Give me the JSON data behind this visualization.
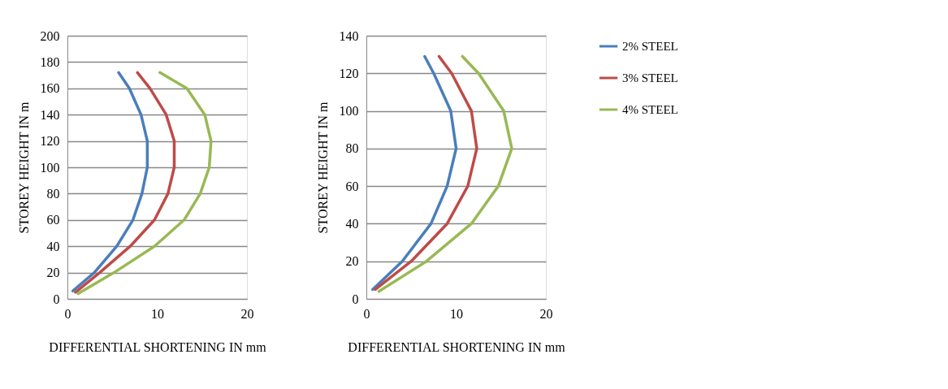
{
  "chart_data": [
    {
      "type": "line",
      "xlabel": "DIFFERENTIAL SHORTENING IN mm",
      "ylabel": "STOREY HEIGHT IN m",
      "xlim": [
        0,
        20
      ],
      "xticks": [
        0,
        10,
        20
      ],
      "ylim": [
        0,
        200
      ],
      "yticks": [
        0,
        20,
        40,
        60,
        80,
        100,
        120,
        140,
        160,
        180,
        200
      ],
      "grid": "y",
      "legend": "right",
      "marker": "none",
      "line_style": "solid",
      "series": [
        {
          "name": "2% STEEL",
          "color": "#4a7ebb",
          "x": [
            0.6,
            3.0,
            5.5,
            7.3,
            8.3,
            8.9,
            8.9,
            8.2,
            6.9,
            5.7
          ],
          "values": [
            6,
            20,
            40,
            60,
            80,
            100,
            120,
            140,
            160,
            172
          ]
        },
        {
          "name": "3% STEEL",
          "color": "#be4b48",
          "x": [
            0.9,
            3.6,
            7.0,
            9.7,
            11.2,
            11.9,
            11.9,
            11.0,
            9.2,
            7.8
          ],
          "values": [
            5,
            20,
            40,
            60,
            80,
            100,
            120,
            140,
            160,
            172
          ]
        },
        {
          "name": "4% STEEL",
          "color": "#98b954",
          "x": [
            1.2,
            5.2,
            9.7,
            13.0,
            14.8,
            15.8,
            16.0,
            15.3,
            13.3,
            10.3
          ],
          "values": [
            4,
            20,
            40,
            60,
            80,
            100,
            120,
            140,
            160,
            172
          ]
        }
      ]
    },
    {
      "type": "line",
      "xlabel": "DIFFERENTIAL SHORTENING IN mm",
      "ylabel": "STOREY HEIGHT IN m",
      "xlim": [
        0,
        20
      ],
      "xticks": [
        0,
        10,
        20
      ],
      "ylim": [
        0,
        140
      ],
      "yticks": [
        0,
        20,
        40,
        60,
        80,
        100,
        120,
        140
      ],
      "grid": "y",
      "legend": "right",
      "marker": "none",
      "line_style": "solid",
      "series": [
        {
          "name": "2% STEEL",
          "color": "#4a7ebb",
          "x": [
            0.7,
            4.0,
            7.2,
            9.0,
            10.0,
            9.4,
            7.5,
            6.5
          ],
          "values": [
            5,
            20,
            40,
            60,
            80,
            100,
            120,
            129
          ]
        },
        {
          "name": "3% STEEL",
          "color": "#be4b48",
          "x": [
            1.0,
            5.0,
            9.0,
            11.3,
            12.3,
            11.7,
            9.5,
            8.1
          ],
          "values": [
            5,
            20,
            40,
            60,
            80,
            100,
            120,
            129
          ]
        },
        {
          "name": "4% STEEL",
          "color": "#98b954",
          "x": [
            1.4,
            6.7,
            11.7,
            14.7,
            16.2,
            15.3,
            12.5,
            10.7
          ],
          "values": [
            4,
            20,
            40,
            60,
            80,
            100,
            120,
            129
          ]
        }
      ]
    }
  ]
}
